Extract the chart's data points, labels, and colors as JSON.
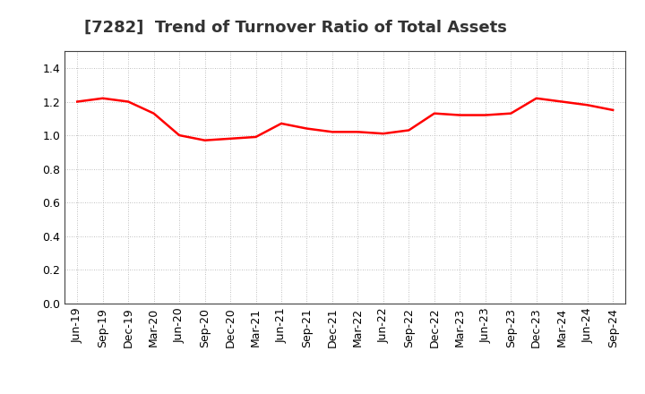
{
  "title": "[7282]  Trend of Turnover Ratio of Total Assets",
  "line_color": "#FF0000",
  "background_color": "#FFFFFF",
  "grid_color": "#AAAAAA",
  "ylim": [
    0.0,
    1.5
  ],
  "yticks": [
    0.0,
    0.2,
    0.4,
    0.6,
    0.8,
    1.0,
    1.2,
    1.4
  ],
  "labels": [
    "Jun-19",
    "Sep-19",
    "Dec-19",
    "Mar-20",
    "Jun-20",
    "Sep-20",
    "Dec-20",
    "Mar-21",
    "Jun-21",
    "Sep-21",
    "Dec-21",
    "Mar-22",
    "Jun-22",
    "Sep-22",
    "Dec-22",
    "Mar-23",
    "Jun-23",
    "Sep-23",
    "Dec-23",
    "Mar-24",
    "Jun-24",
    "Sep-24"
  ],
  "values": [
    1.2,
    1.22,
    1.2,
    1.13,
    1.0,
    0.97,
    0.98,
    0.99,
    1.07,
    1.04,
    1.02,
    1.02,
    1.01,
    1.03,
    1.13,
    1.12,
    1.12,
    1.13,
    1.22,
    1.2,
    1.18,
    1.15
  ],
  "title_fontsize": 13,
  "tick_fontsize": 9,
  "line_width": 1.8
}
